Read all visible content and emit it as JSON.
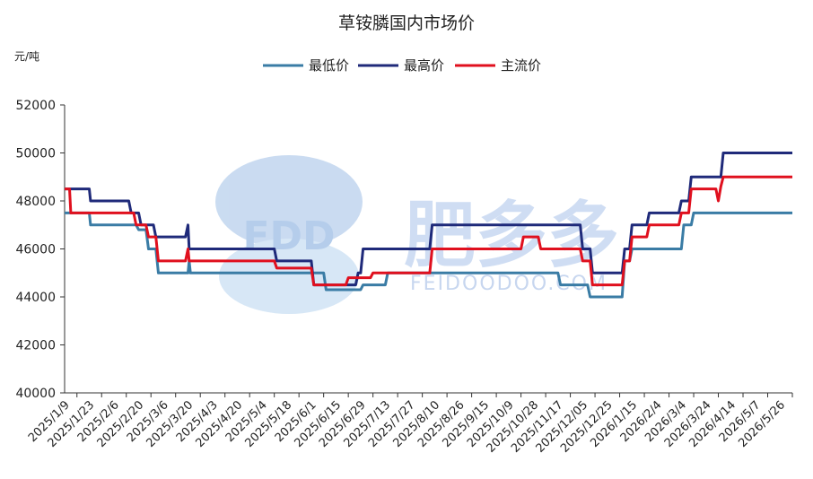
{
  "chart_data": {
    "type": "line",
    "title": "草铵膦国内市场价",
    "unit_label": "元/吨",
    "ylim": [
      40000,
      52000
    ],
    "y_ticks": [
      40000,
      42000,
      44000,
      46000,
      48000,
      50000,
      52000
    ],
    "x_tick_labels": [
      "2025/1/9",
      "2025/1/23",
      "2025/2/6",
      "2025/2/20",
      "2025/3/6",
      "2025/3/20",
      "2025/4/3",
      "2025/4/20",
      "2025/5/4",
      "2025/5/18",
      "2025/6/1",
      "2025/6/15",
      "2025/6/29",
      "2025/7/13",
      "2025/7/27",
      "2025/8/10",
      "2025/8/26",
      "2025/9/15",
      "2025/10/9",
      "2025/10/28",
      "2025/11/17",
      "2025/12/05",
      "2025/12/25",
      "2026/1/15",
      "2026/2/4",
      "2026/3/4",
      "2026/3/24",
      "2026/4/14",
      "2026/5/7",
      "2026/5/26"
    ],
    "legend_position": "top-center",
    "grid": false,
    "series": [
      {
        "name": "最低价",
        "color": "#3a7ca5",
        "values": [
          [
            0,
            47500
          ],
          [
            1,
            47500
          ],
          [
            1.05,
            47000
          ],
          [
            2.9,
            47000
          ],
          [
            3,
            46800
          ],
          [
            3.3,
            46800
          ],
          [
            3.4,
            46000
          ],
          [
            3.7,
            46000
          ],
          [
            3.8,
            45000
          ],
          [
            5,
            45000
          ],
          [
            5.05,
            45500
          ],
          [
            5.1,
            45000
          ],
          [
            10.5,
            45000
          ],
          [
            10.6,
            44300
          ],
          [
            12,
            44300
          ],
          [
            12.1,
            44500
          ],
          [
            13,
            44500
          ],
          [
            13.1,
            45000
          ],
          [
            20,
            45000
          ],
          [
            20.1,
            44500
          ],
          [
            21.2,
            44500
          ],
          [
            21.3,
            44000
          ],
          [
            22.6,
            44000
          ],
          [
            22.7,
            45500
          ],
          [
            22.9,
            45500
          ],
          [
            23,
            46000
          ],
          [
            25,
            46000
          ],
          [
            25.1,
            47000
          ],
          [
            25.4,
            47000
          ],
          [
            25.5,
            47500
          ],
          [
            29.5,
            47500
          ]
        ]
      },
      {
        "name": "最高价",
        "color": "#1f2a7a",
        "values": [
          [
            0,
            48500
          ],
          [
            1,
            48500
          ],
          [
            1.05,
            48000
          ],
          [
            2.6,
            48000
          ],
          [
            2.7,
            47500
          ],
          [
            3,
            47500
          ],
          [
            3.1,
            47000
          ],
          [
            3.6,
            47000
          ],
          [
            3.7,
            46500
          ],
          [
            4.9,
            46500
          ],
          [
            5,
            47000
          ],
          [
            5.05,
            46000
          ],
          [
            8.5,
            46000
          ],
          [
            8.6,
            45500
          ],
          [
            10,
            45500
          ],
          [
            10.1,
            44500
          ],
          [
            11.8,
            44500
          ],
          [
            11.9,
            45000
          ],
          [
            12,
            45000
          ],
          [
            12.1,
            46000
          ],
          [
            14.8,
            46000
          ],
          [
            14.9,
            47000
          ],
          [
            20.9,
            47000
          ],
          [
            21,
            46000
          ],
          [
            21.3,
            46000
          ],
          [
            21.4,
            45000
          ],
          [
            22.6,
            45000
          ],
          [
            22.7,
            46000
          ],
          [
            22.9,
            46000
          ],
          [
            23,
            47000
          ],
          [
            23.6,
            47000
          ],
          [
            23.7,
            47500
          ],
          [
            24.9,
            47500
          ],
          [
            25,
            48000
          ],
          [
            25.3,
            48000
          ],
          [
            25.4,
            49000
          ],
          [
            26.6,
            49000
          ],
          [
            26.7,
            50000
          ],
          [
            29.5,
            50000
          ]
        ]
      },
      {
        "name": "主流价",
        "color": "#e0101e",
        "values": [
          [
            0,
            48500
          ],
          [
            0.2,
            48500
          ],
          [
            0.25,
            47500
          ],
          [
            2.8,
            47500
          ],
          [
            2.9,
            47000
          ],
          [
            3.3,
            47000
          ],
          [
            3.4,
            46500
          ],
          [
            3.7,
            46500
          ],
          [
            3.8,
            45500
          ],
          [
            4.9,
            45500
          ],
          [
            5,
            46000
          ],
          [
            5.05,
            45500
          ],
          [
            8.5,
            45500
          ],
          [
            8.6,
            45200
          ],
          [
            10,
            45200
          ],
          [
            10.1,
            44500
          ],
          [
            11.4,
            44500
          ],
          [
            11.5,
            44800
          ],
          [
            12.4,
            44800
          ],
          [
            12.5,
            45000
          ],
          [
            14.8,
            45000
          ],
          [
            14.9,
            46000
          ],
          [
            18.5,
            46000
          ],
          [
            18.6,
            46500
          ],
          [
            19.2,
            46500
          ],
          [
            19.3,
            46000
          ],
          [
            20.9,
            46000
          ],
          [
            21,
            45500
          ],
          [
            21.3,
            45500
          ],
          [
            21.4,
            44500
          ],
          [
            22.6,
            44500
          ],
          [
            22.7,
            45500
          ],
          [
            22.9,
            45500
          ],
          [
            23,
            46500
          ],
          [
            23.6,
            46500
          ],
          [
            23.7,
            47000
          ],
          [
            24.9,
            47000
          ],
          [
            25,
            47500
          ],
          [
            25.3,
            47500
          ],
          [
            25.4,
            48500
          ],
          [
            26.4,
            48500
          ],
          [
            26.5,
            48000
          ],
          [
            26.6,
            48600
          ],
          [
            26.7,
            49000
          ],
          [
            29.5,
            49000
          ]
        ]
      }
    ]
  },
  "watermark": {
    "badge": "FDD",
    "brand": "肥多多",
    "domain": "FEIDOODOO.COM"
  }
}
